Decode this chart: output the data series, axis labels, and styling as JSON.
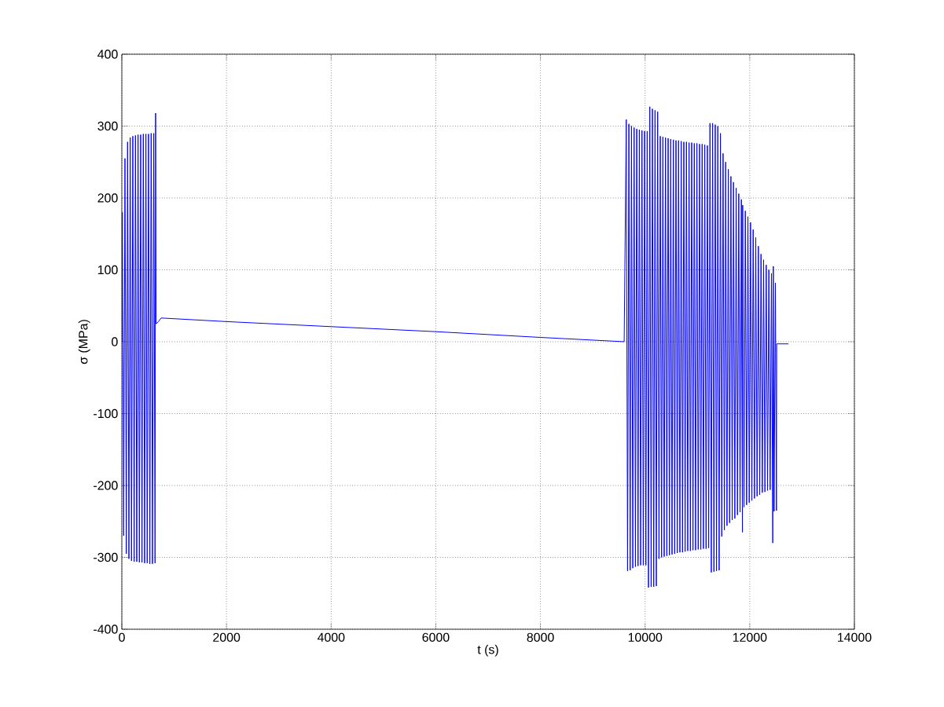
{
  "chart_data": {
    "type": "line",
    "xlabel": "t (s)",
    "ylabel": "σ (MPa)",
    "color": "#0000ff",
    "grid": true,
    "xlim": [
      0,
      14000
    ],
    "xticks": [
      0,
      2000,
      4000,
      6000,
      8000,
      10000,
      12000,
      14000
    ],
    "ylim": [
      -400,
      400
    ],
    "yticks": [
      -400,
      -300,
      -200,
      -100,
      0,
      100,
      200,
      300,
      400
    ],
    "x": [
      0,
      10,
      35,
      60,
      85,
      110,
      135,
      160,
      185,
      210,
      235,
      260,
      285,
      310,
      335,
      360,
      385,
      410,
      435,
      460,
      485,
      510,
      535,
      560,
      585,
      610,
      635,
      645,
      655,
      700,
      750,
      2000,
      4000,
      6000,
      8000,
      9600,
      9640,
      9665,
      9690,
      9715,
      9740,
      9765,
      9790,
      9815,
      9840,
      9865,
      9890,
      9915,
      9940,
      9965,
      9990,
      10015,
      10040,
      10065,
      10090,
      10115,
      10140,
      10165,
      10190,
      10215,
      10240,
      10265,
      10290,
      10315,
      10340,
      10365,
      10390,
      10415,
      10440,
      10465,
      10490,
      10515,
      10540,
      10565,
      10590,
      10615,
      10640,
      10665,
      10690,
      10715,
      10740,
      10765,
      10790,
      10815,
      10840,
      10865,
      10890,
      10915,
      10940,
      10965,
      10990,
      11015,
      11040,
      11065,
      11090,
      11115,
      11140,
      11165,
      11190,
      11215,
      11240,
      11265,
      11290,
      11315,
      11340,
      11365,
      11390,
      11415,
      11440,
      11465,
      11490,
      11515,
      11540,
      11565,
      11590,
      11615,
      11640,
      11665,
      11690,
      11715,
      11740,
      11765,
      11790,
      11815,
      11840,
      11860,
      11865,
      11890,
      11915,
      11940,
      11965,
      11990,
      12015,
      12040,
      12065,
      12090,
      12115,
      12140,
      12165,
      12190,
      12215,
      12240,
      12265,
      12290,
      12315,
      12340,
      12365,
      12390,
      12415,
      12440,
      12450,
      12465,
      12490,
      12510,
      12515,
      12740
    ],
    "values": [
      0,
      180,
      -270,
      255,
      -295,
      278,
      -302,
      284,
      -305,
      286,
      -306,
      287,
      -306,
      288,
      -307,
      288,
      -307,
      289,
      -308,
      289,
      -308,
      289,
      -309,
      290,
      -309,
      290,
      -308,
      318,
      25,
      28,
      33,
      28,
      21,
      14,
      6,
      0,
      309,
      -319,
      303,
      -318,
      300,
      -315,
      298,
      -313,
      296,
      -312,
      295,
      -311,
      294,
      -311,
      293,
      -311,
      293,
      -342,
      327,
      -341,
      324,
      -341,
      322,
      -340,
      320,
      -302,
      286,
      -300,
      285,
      -299,
      284,
      -298,
      283,
      -297,
      282,
      -296,
      281,
      -295,
      280,
      -294,
      280,
      -293,
      279,
      -293,
      278,
      -292,
      278,
      -291,
      277,
      -291,
      277,
      -290,
      276,
      -290,
      276,
      -289,
      275,
      -289,
      275,
      -288,
      274,
      -288,
      273,
      -287,
      304,
      -321,
      304,
      -320,
      302,
      -319,
      300,
      -318,
      290,
      -271,
      262,
      -262,
      250,
      -256,
      240,
      -252,
      230,
      -248,
      222,
      -246,
      214,
      -241,
      206,
      -237,
      198,
      -265,
      190,
      -230,
      182,
      -227,
      174,
      -224,
      166,
      -221,
      156,
      -218,
      145,
      -215,
      133,
      -213,
      122,
      -210,
      114,
      -209,
      107,
      -207,
      100,
      -206,
      95,
      -280,
      105,
      -236,
      82,
      -235,
      -3,
      -3
    ]
  }
}
